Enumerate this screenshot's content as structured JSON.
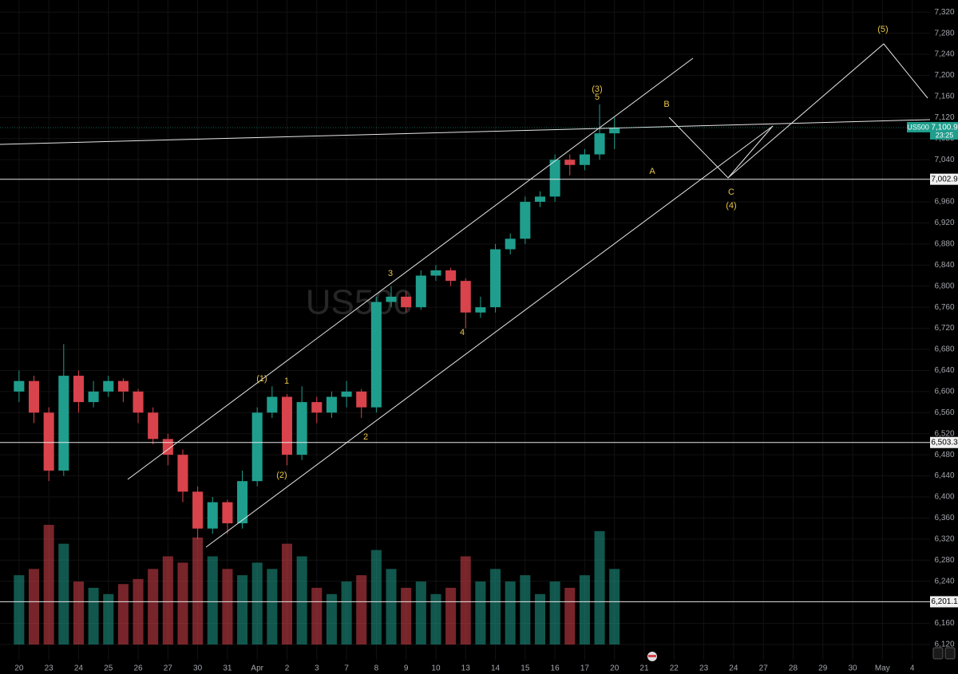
{
  "chart_data": {
    "type": "candlestick",
    "symbol": "US500",
    "countdown": "23:25",
    "last": {
      "value": 7100.9,
      "label": "7,100.9"
    },
    "up_color": "#1f9e8d",
    "down_color": "#d8434c",
    "grid": true,
    "ylim": [
      6064,
      7343
    ],
    "xlim": [
      -0.64,
      30.6
    ],
    "yticks": [
      {
        "value": 7320,
        "label": "7,320"
      },
      {
        "value": 7280,
        "label": "7,280"
      },
      {
        "value": 7240,
        "label": "7,240"
      },
      {
        "value": 7200,
        "label": "7,200"
      },
      {
        "value": 7160,
        "label": "7,160"
      },
      {
        "value": 7120,
        "label": "7,120"
      },
      {
        "value": 7080,
        "label": "7,080"
      },
      {
        "value": 7040,
        "label": "7,040"
      },
      {
        "value": 6960,
        "label": "6,960"
      },
      {
        "value": 6920,
        "label": "6,920"
      },
      {
        "value": 6880,
        "label": "6,880"
      },
      {
        "value": 6840,
        "label": "6,840"
      },
      {
        "value": 6800,
        "label": "6,800"
      },
      {
        "value": 6760,
        "label": "6,760"
      },
      {
        "value": 6720,
        "label": "6,720"
      },
      {
        "value": 6680,
        "label": "6,680"
      },
      {
        "value": 6640,
        "label": "6,640"
      },
      {
        "value": 6600,
        "label": "6,600"
      },
      {
        "value": 6560,
        "label": "6,560"
      },
      {
        "value": 6520,
        "label": "6,520"
      },
      {
        "value": 6480,
        "label": "6,480"
      },
      {
        "value": 6440,
        "label": "6,440"
      },
      {
        "value": 6400,
        "label": "6,400"
      },
      {
        "value": 6360,
        "label": "6,360"
      },
      {
        "value": 6320,
        "label": "6,320"
      },
      {
        "value": 6280,
        "label": "6,280"
      },
      {
        "value": 6240,
        "label": "6,240"
      },
      {
        "value": 6160,
        "label": "6,160"
      },
      {
        "value": 6120,
        "label": "6,120"
      }
    ],
    "xticks": [
      {
        "value": 0,
        "label": "20"
      },
      {
        "value": 1,
        "label": "23"
      },
      {
        "value": 2,
        "label": "24"
      },
      {
        "value": 3,
        "label": "25"
      },
      {
        "value": 4,
        "label": "26"
      },
      {
        "value": 5,
        "label": "27"
      },
      {
        "value": 6,
        "label": "30"
      },
      {
        "value": 7,
        "label": "31"
      },
      {
        "value": 8,
        "label": "Apr"
      },
      {
        "value": 9,
        "label": "2"
      },
      {
        "value": 10,
        "label": "3"
      },
      {
        "value": 11,
        "label": "7"
      },
      {
        "value": 12,
        "label": "8"
      },
      {
        "value": 13,
        "label": "9"
      },
      {
        "value": 14,
        "label": "10"
      },
      {
        "value": 15,
        "label": "13"
      },
      {
        "value": 16,
        "label": "14"
      },
      {
        "value": 17,
        "label": "15"
      },
      {
        "value": 18,
        "label": "16"
      },
      {
        "value": 19,
        "label": "17"
      },
      {
        "value": 20,
        "label": "20"
      },
      {
        "value": 21,
        "label": "21"
      },
      {
        "value": 22,
        "label": "22"
      },
      {
        "value": 23,
        "label": "23"
      },
      {
        "value": 24,
        "label": "24"
      },
      {
        "value": 25,
        "label": "27"
      },
      {
        "value": 26,
        "label": "28"
      },
      {
        "value": 27,
        "label": "29"
      },
      {
        "value": 28,
        "label": "30"
      },
      {
        "value": 29,
        "label": "May"
      },
      {
        "value": 30,
        "label": "4"
      }
    ],
    "hlines": [
      {
        "value": 7002.9,
        "label": "7,002.9"
      },
      {
        "value": 6503.3,
        "label": "6,503.3"
      },
      {
        "value": 6201.1,
        "label": "6,201.1"
      }
    ],
    "x": [
      0,
      0.5,
      1,
      1.5,
      2,
      2.5,
      3,
      3.5,
      4,
      4.5,
      5,
      5.5,
      6,
      6.5,
      7,
      7.5,
      8,
      8.5,
      9,
      9.5,
      10,
      10.5,
      11,
      11.5,
      12,
      12.5,
      13,
      13.5,
      14,
      14.5,
      15,
      15.5,
      16,
      16.5,
      17,
      17.5,
      18,
      18.5,
      19,
      19.5,
      20
    ],
    "open": [
      6600,
      6620,
      6560,
      6450,
      6630,
      6580,
      6600,
      6620,
      6600,
      6560,
      6510,
      6480,
      6410,
      6340,
      6390,
      6350,
      6430,
      6560,
      6590,
      6480,
      6580,
      6560,
      6590,
      6600,
      6570,
      6770,
      6780,
      6760,
      6820,
      6830,
      6810,
      6750,
      6760,
      6870,
      6890,
      6960,
      6970,
      7040,
      7030,
      7050,
      7090
    ],
    "high": [
      6640,
      6630,
      6570,
      6690,
      6640,
      6620,
      6630,
      6625,
      6605,
      6570,
      6520,
      6490,
      6420,
      6400,
      6395,
      6450,
      6570,
      6610,
      6595,
      6610,
      6590,
      6600,
      6620,
      6605,
      6780,
      6800,
      6790,
      6830,
      6840,
      6835,
      6815,
      6780,
      6880,
      6900,
      6970,
      6980,
      7050,
      7050,
      7060,
      7145,
      7120
    ],
    "low": [
      6580,
      6540,
      6430,
      6440,
      6560,
      6570,
      6590,
      6580,
      6540,
      6500,
      6460,
      6390,
      6320,
      6330,
      6330,
      6340,
      6420,
      6550,
      6460,
      6470,
      6540,
      6550,
      6570,
      6550,
      6560,
      6760,
      6750,
      6755,
      6810,
      6800,
      6720,
      6740,
      6750,
      6860,
      6880,
      6950,
      6960,
      7010,
      7020,
      7040,
      7060
    ],
    "close": [
      6620,
      6560,
      6450,
      6630,
      6580,
      6600,
      6620,
      6600,
      6560,
      6510,
      6480,
      6410,
      6340,
      6390,
      6350,
      6430,
      6560,
      6590,
      6480,
      6580,
      6560,
      6590,
      6600,
      6570,
      6770,
      6780,
      6760,
      6820,
      6830,
      6810,
      6750,
      6760,
      6870,
      6890,
      6960,
      6970,
      7040,
      7030,
      7050,
      7090,
      7100.9
    ],
    "volume": [
      55,
      60,
      95,
      80,
      50,
      45,
      40,
      48,
      52,
      60,
      70,
      65,
      85,
      70,
      60,
      55,
      65,
      60,
      80,
      70,
      45,
      40,
      50,
      55,
      75,
      60,
      45,
      50,
      40,
      45,
      70,
      50,
      60,
      50,
      55,
      40,
      50,
      45,
      55,
      90,
      60
    ],
    "annotations": [
      "(5)",
      "(3)",
      "5",
      "B",
      "A",
      "C",
      "(4)",
      "3",
      "4",
      "(1)",
      "1",
      "(2)",
      "2"
    ]
  }
}
